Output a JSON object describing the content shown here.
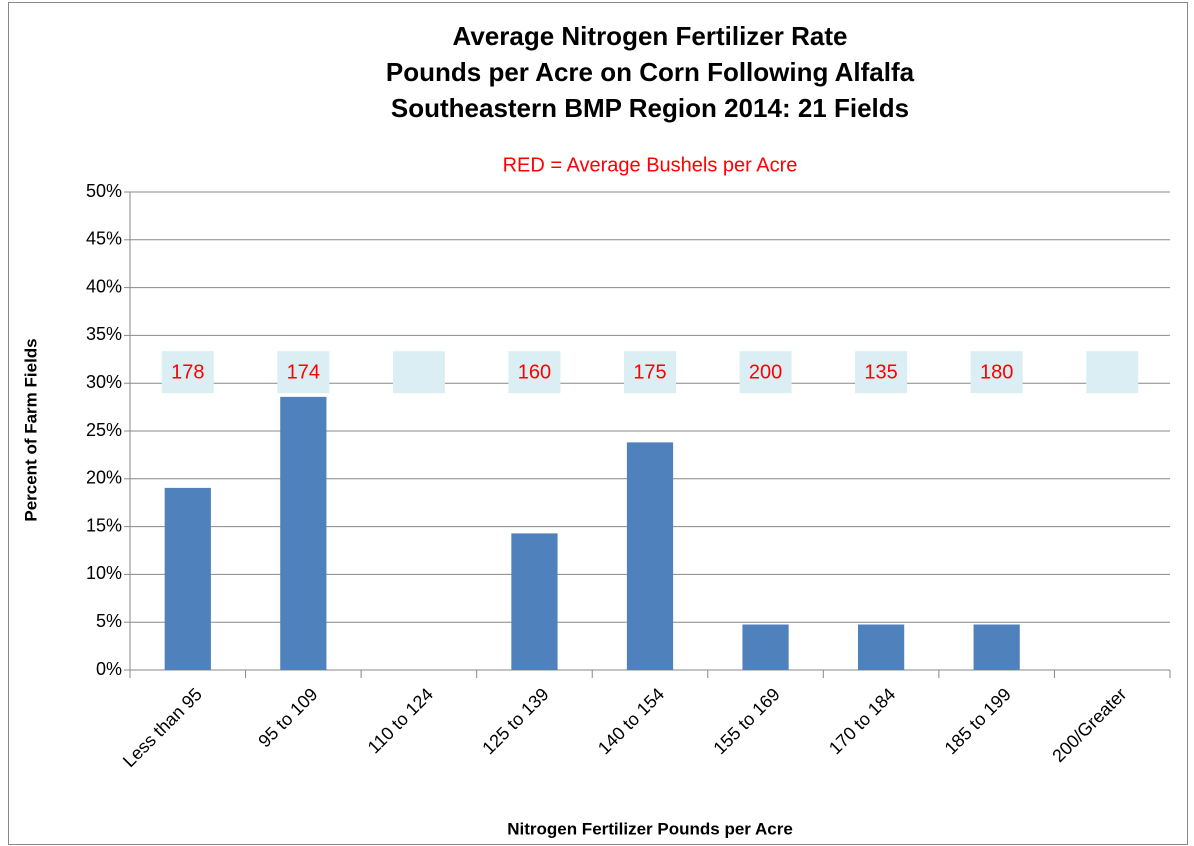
{
  "chart_data": {
    "type": "bar",
    "title": [
      "Average Nitrogen Fertilizer Rate",
      "Pounds per Acre on Corn Following  Alfalfa",
      "Southeastern BMP Region 2014:  21 Fields"
    ],
    "subtitle": "RED = Average Bushels per Acre",
    "x_label": "Nitrogen Fertilizer Pounds per Acre",
    "y_label": "Percent of Farm Fields",
    "categories": [
      "Less than 95",
      "95 to 109",
      "110 to 124",
      "125 to 139",
      "140 to 154",
      "155 to 169",
      "170 to 184",
      "185 to 199",
      "200/Greater"
    ],
    "values": [
      19.05,
      28.57,
      0,
      14.29,
      23.81,
      4.76,
      4.76,
      4.76,
      0
    ],
    "yields": [
      178,
      174,
      null,
      160,
      175,
      200,
      135,
      180,
      null
    ],
    "color": "#4f81bd",
    "ylim": [
      0,
      50
    ],
    "yticks": [
      {
        "value": 0,
        "label": "0%"
      },
      {
        "value": 5,
        "label": "5%"
      },
      {
        "value": 10,
        "label": "10%"
      },
      {
        "value": 15,
        "label": "15%"
      },
      {
        "value": 20,
        "label": "20%"
      },
      {
        "value": 25,
        "label": "25%"
      },
      {
        "value": 30,
        "label": "30%"
      },
      {
        "value": 35,
        "label": "35%"
      },
      {
        "value": 40,
        "label": "40%"
      },
      {
        "value": 45,
        "label": "45%"
      },
      {
        "value": 50,
        "label": "50%"
      }
    ],
    "grid": true
  }
}
